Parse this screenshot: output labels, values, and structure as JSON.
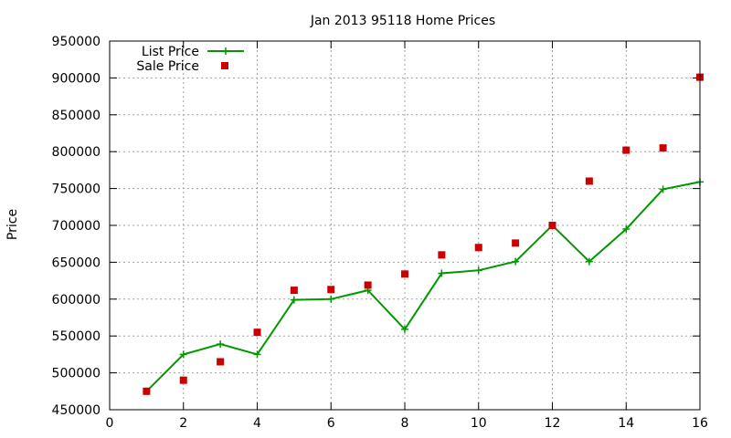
{
  "chart_data": {
    "type": "line",
    "title": "Jan 2013 95118 Home Prices",
    "xlabel": "",
    "ylabel": "Price",
    "xlim": [
      0,
      16
    ],
    "ylim": [
      450000,
      950000
    ],
    "x_ticks": [
      "0",
      "2",
      "4",
      "6",
      "8",
      "10",
      "12",
      "14",
      "16"
    ],
    "y_ticks": [
      "450000",
      "500000",
      "550000",
      "600000",
      "650000",
      "700000",
      "750000",
      "800000",
      "850000",
      "900000",
      "950000"
    ],
    "grid": true,
    "legend_position": "top-left",
    "x": [
      1,
      2,
      3,
      4,
      5,
      6,
      7,
      8,
      9,
      10,
      11,
      12,
      13,
      14,
      15,
      16
    ],
    "series": [
      {
        "name": "List Price",
        "style": "lines+points",
        "marker": "plus",
        "color": "#009900",
        "values": [
          475000,
          525000,
          539000,
          525000,
          599000,
          600000,
          612000,
          559000,
          635000,
          639000,
          651000,
          700000,
          651000,
          695000,
          749000,
          759000
        ]
      },
      {
        "name": "Sale Price",
        "style": "points",
        "marker": "square",
        "color": "#cc0000",
        "values": [
          475000,
          490000,
          515000,
          555000,
          612000,
          613000,
          619000,
          634000,
          660000,
          670000,
          676000,
          700000,
          760000,
          802000,
          805000,
          901000
        ]
      }
    ]
  }
}
